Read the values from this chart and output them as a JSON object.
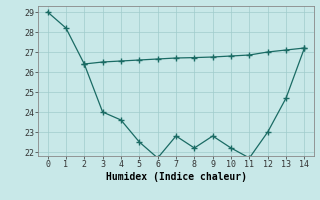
{
  "line1_x": [
    0,
    1,
    2,
    3,
    4,
    5,
    6,
    7,
    8,
    9,
    10,
    11,
    12,
    13,
    14
  ],
  "line1_y": [
    29,
    28.2,
    26.4,
    24.0,
    23.6,
    22.5,
    21.7,
    22.8,
    22.2,
    22.8,
    22.2,
    21.7,
    23.0,
    24.7,
    27.2
  ],
  "line2_x": [
    2,
    3,
    4,
    5,
    6,
    7,
    8,
    9,
    10,
    11,
    12,
    13,
    14
  ],
  "line2_y": [
    26.4,
    26.5,
    26.55,
    26.6,
    26.65,
    26.7,
    26.72,
    26.75,
    26.8,
    26.85,
    27.0,
    27.1,
    27.2
  ],
  "color": "#1a6b64",
  "bg_color": "#c8e8e8",
  "xlabel": "Humidex (Indice chaleur)",
  "ylim_min": 21.8,
  "ylim_max": 29.3,
  "xlim_min": -0.5,
  "xlim_max": 14.5,
  "yticks": [
    22,
    23,
    24,
    25,
    26,
    27,
    28,
    29
  ],
  "xticks": [
    0,
    1,
    2,
    3,
    4,
    5,
    6,
    7,
    8,
    9,
    10,
    11,
    12,
    13,
    14
  ],
  "marker": "+"
}
